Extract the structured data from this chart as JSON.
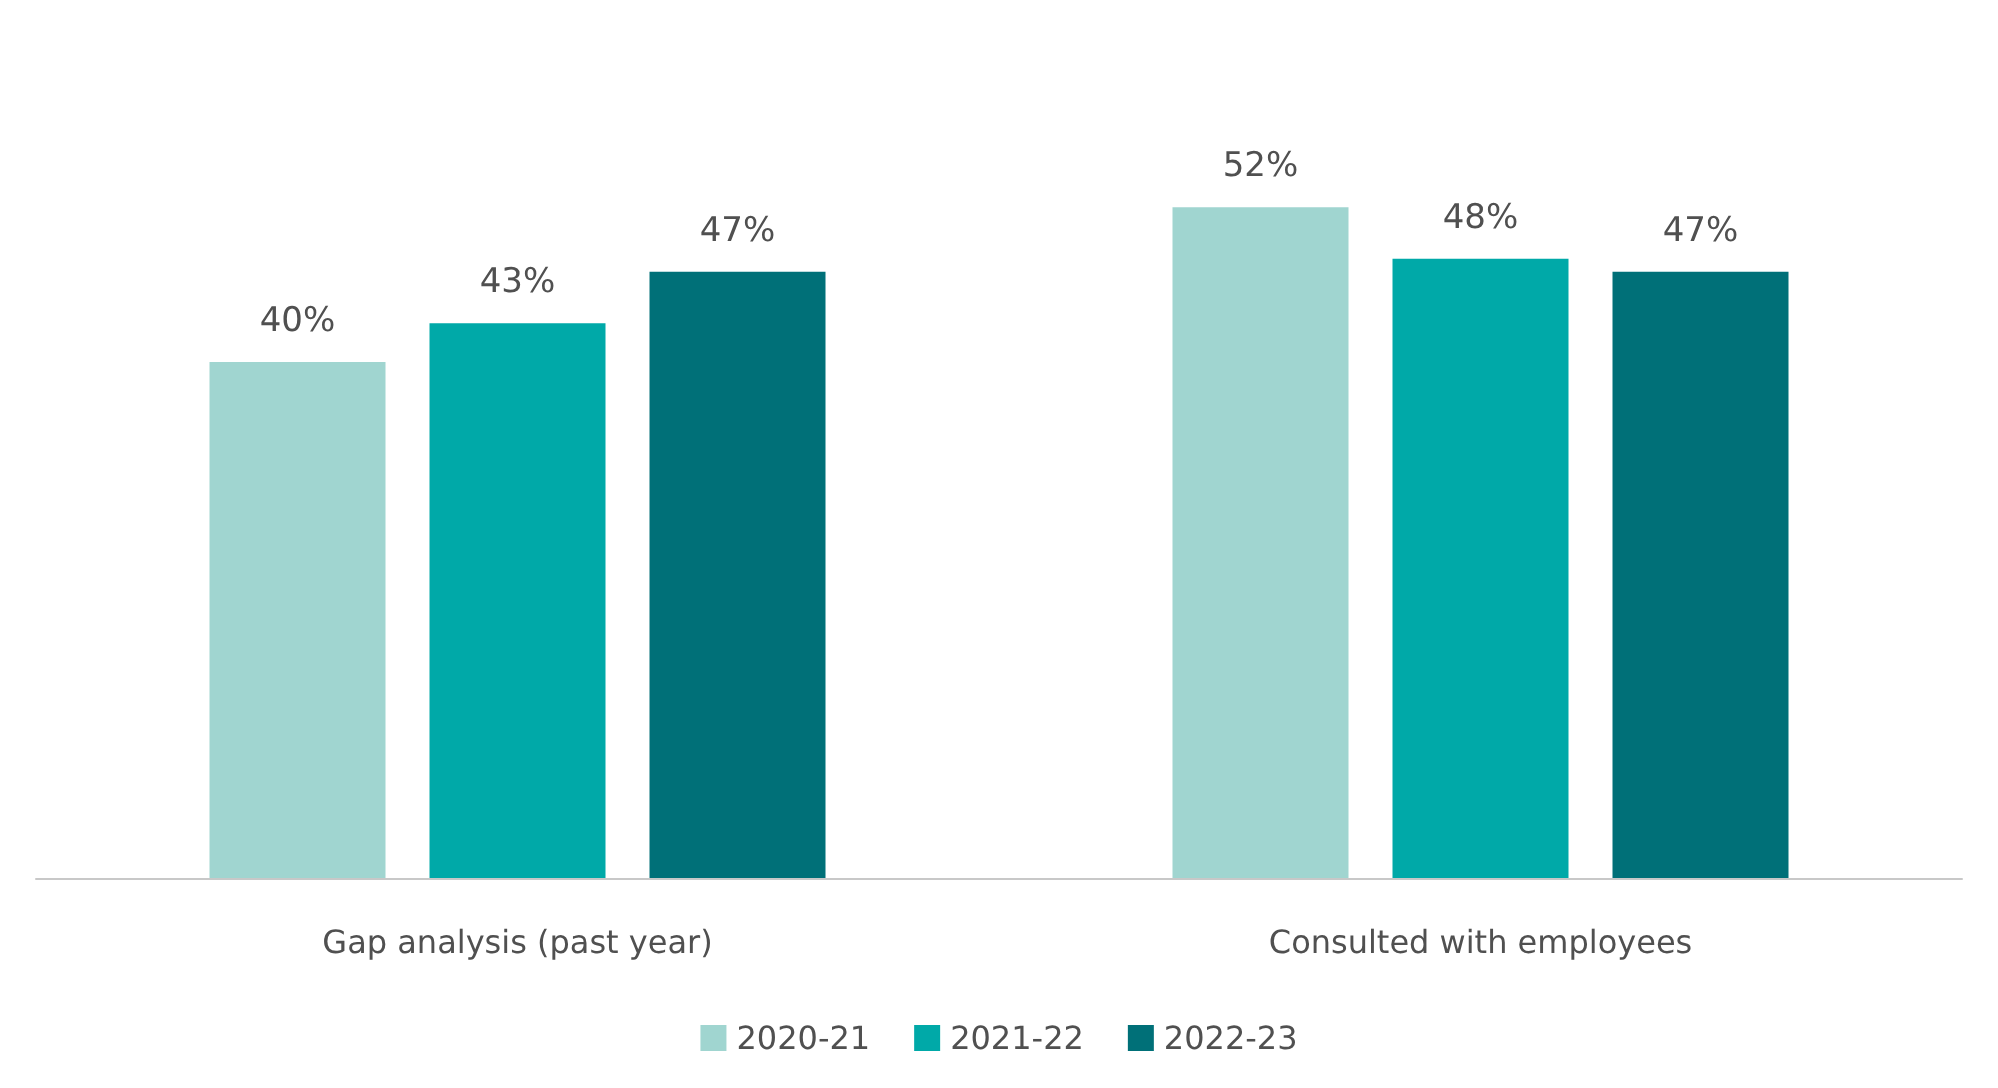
{
  "chart_data": {
    "type": "bar",
    "categories": [
      "Gap analysis (past year)",
      "Consulted with employees"
    ],
    "series": [
      {
        "name": "2020-21",
        "color": "#a0d5d0",
        "values": [
          40,
          52
        ],
        "value_labels": [
          "40%",
          "52%"
        ]
      },
      {
        "name": "2021-22",
        "color": "#00a9a8",
        "values": [
          43,
          48
        ],
        "value_labels": [
          "43%",
          "48%"
        ]
      },
      {
        "name": "2022-23",
        "color": "#007078",
        "values": [
          47,
          47
        ],
        "value_labels": [
          "47%",
          "47%"
        ]
      }
    ],
    "legend": "bottom",
    "grid": false
  }
}
